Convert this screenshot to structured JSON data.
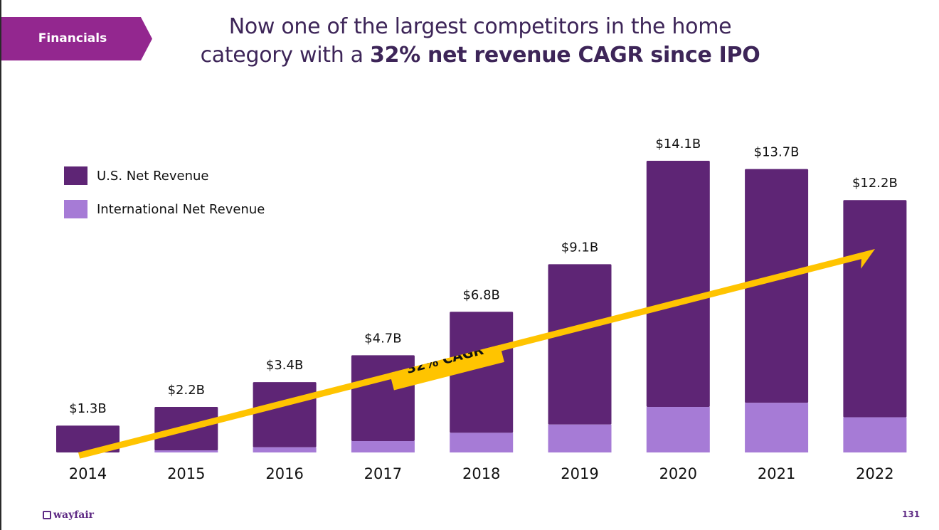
{
  "section_tag": "Financials",
  "title": {
    "line1": "Now one of the largest competitors in the home",
    "line2_normal": "category with a ",
    "line2_bold": "32% net revenue CAGR since IPO"
  },
  "colors": {
    "us": "#5e2575",
    "intl": "#a67bd6",
    "tag": "#93278f",
    "arrow": "#ffc400",
    "title": "#3d2558"
  },
  "footer": {
    "logo": "wayfair",
    "page_number": "131"
  },
  "chart_data": {
    "type": "bar",
    "stacked": true,
    "title": "",
    "xlabel": "",
    "ylabel": "",
    "ylim": [
      0,
      14.1
    ],
    "grid": false,
    "legend_position": "top-left",
    "categories": [
      "2014",
      "2015",
      "2016",
      "2017",
      "2018",
      "2019",
      "2020",
      "2021",
      "2022"
    ],
    "series": [
      {
        "name": "U.S. Net Revenue",
        "values": [
          1.3,
          2.1,
          3.15,
          4.15,
          5.85,
          7.75,
          11.9,
          11.3,
          10.5
        ]
      },
      {
        "name": "International Net Revenue",
        "values": [
          0.0,
          0.1,
          0.25,
          0.55,
          0.95,
          1.35,
          2.2,
          2.4,
          1.7
        ]
      }
    ],
    "totals_labels": [
      "$1.3B",
      "$2.2B",
      "$3.4B",
      "$4.7B",
      "$6.8B",
      "$9.1B",
      "$14.1B",
      "$13.7B",
      "$12.2B"
    ],
    "annotation": {
      "text": "32% CAGR",
      "from_category": "2014",
      "to_category": "2022"
    }
  }
}
